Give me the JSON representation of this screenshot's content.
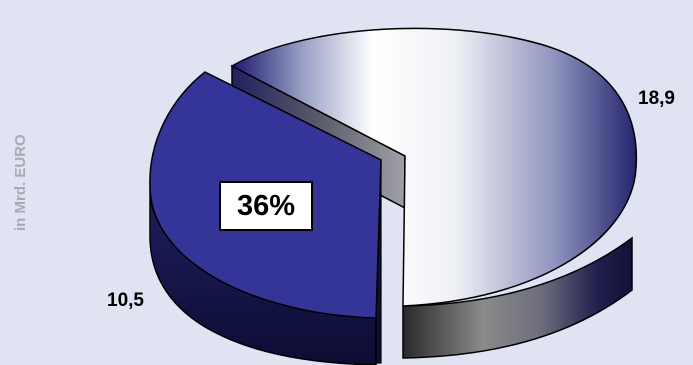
{
  "chart_data": {
    "type": "pie",
    "ylabel": "in Mrd. EURO",
    "slices": [
      {
        "value": 18.9,
        "label": "18,9",
        "color": "#ffffff"
      },
      {
        "value": 10.5,
        "label": "10,5",
        "color": "#343499",
        "percent_label": "36%",
        "exploded": true
      }
    ],
    "three_d": true,
    "background": "#dfe3f2"
  }
}
